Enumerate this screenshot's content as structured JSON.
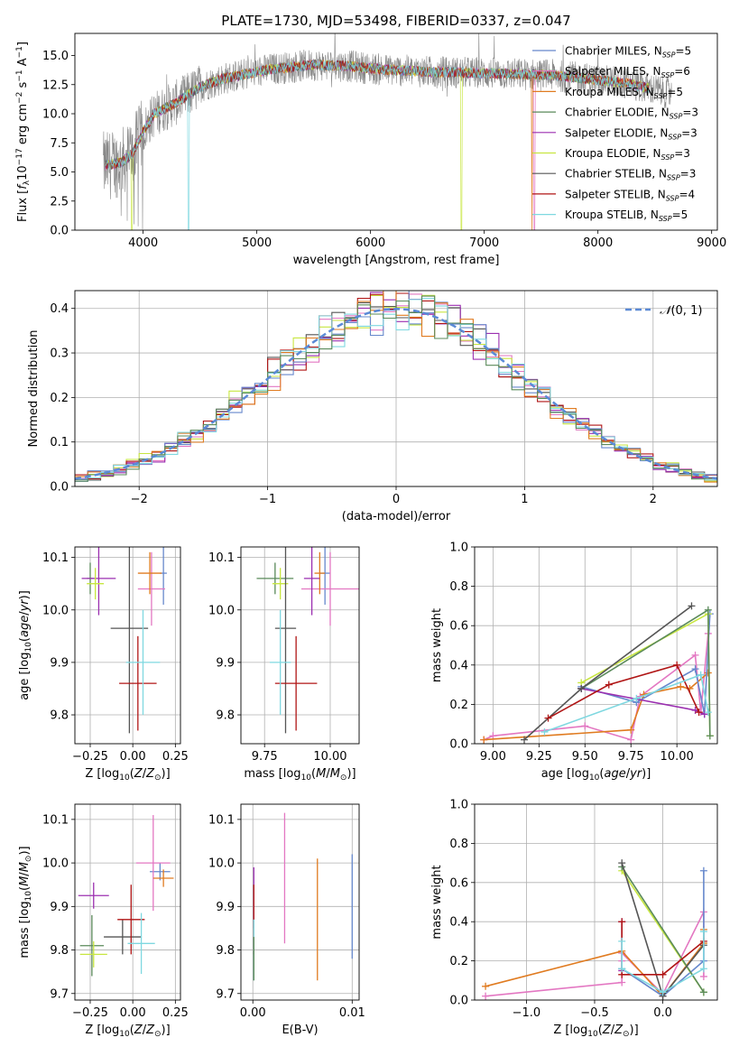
{
  "colors": {
    "chabrier_miles": "#6688cc",
    "salpeter_miles": "#e377c2",
    "kroupa_miles": "#e07b20",
    "chabrier_elodie": "#5a8a5a",
    "salpeter_elodie": "#9b2fb0",
    "kroupa_elodie": "#c8e640",
    "chabrier_stelib": "#555555",
    "salpeter_stelib": "#b01515",
    "kroupa_stelib": "#7fd8e0",
    "data_gray": "#888888",
    "gauss": "#5b8ad6",
    "grid": "#b0b0b0"
  },
  "chart_data": [
    {
      "id": "spectrum",
      "type": "line",
      "title": "PLATE=1730, MJD=53498, FIBERID=0337, z=0.047",
      "xlabel": "wavelength [Angstrom, rest frame]",
      "ylabel": "Flux [f_λ 10^-17 erg cm^-2 s^-1 A^-1]",
      "xlim": [
        3400,
        9050
      ],
      "ylim": [
        0,
        16.9
      ],
      "xticks": [
        4000,
        5000,
        6000,
        7000,
        8000,
        9000
      ],
      "yticks": [
        0.0,
        2.5,
        5.0,
        7.5,
        10.0,
        12.5,
        15.0
      ],
      "grid": false,
      "legend": "top-right",
      "data_range": [
        3650,
        8650
      ],
      "continuum": [
        [
          3650,
          5.5
        ],
        [
          3800,
          5.8
        ],
        [
          3900,
          6.5
        ],
        [
          4000,
          8.5
        ],
        [
          4100,
          10.0
        ],
        [
          4200,
          10.5
        ],
        [
          4300,
          11.0
        ],
        [
          4500,
          12.3
        ],
        [
          4700,
          13.0
        ],
        [
          4900,
          13.4
        ],
        [
          5100,
          13.8
        ],
        [
          5300,
          14.0
        ],
        [
          5500,
          14.2
        ],
        [
          5800,
          14.1
        ],
        [
          6100,
          13.8
        ],
        [
          6500,
          13.6
        ],
        [
          6900,
          13.5
        ],
        [
          7300,
          13.4
        ],
        [
          7600,
          13.3
        ],
        [
          7900,
          13.0
        ],
        [
          8200,
          12.7
        ],
        [
          8400,
          12.3
        ],
        [
          8650,
          11.7
        ]
      ],
      "series": [
        {
          "name": "Chabrier MILES, N_SSP=5",
          "color_key": "chabrier_miles"
        },
        {
          "name": "Salpeter MILES, N_SSP=6",
          "color_key": "salpeter_miles"
        },
        {
          "name": "Kroupa MILES, N_SSP=5",
          "color_key": "kroupa_miles"
        },
        {
          "name": "Chabrier ELODIE, N_SSP=3",
          "color_key": "chabrier_elodie"
        },
        {
          "name": "Salpeter ELODIE, N_SSP=3",
          "color_key": "salpeter_elodie"
        },
        {
          "name": "Kroupa ELODIE, N_SSP=3",
          "color_key": "kroupa_elodie"
        },
        {
          "name": "Chabrier STELIB, N_SSP=3",
          "color_key": "chabrier_stelib"
        },
        {
          "name": "Salpeter STELIB, N_SSP=4",
          "color_key": "salpeter_stelib"
        },
        {
          "name": "Kroupa STELIB, N_SSP=5",
          "color_key": "kroupa_stelib"
        }
      ]
    },
    {
      "id": "residuals",
      "type": "line",
      "xlabel": "(data-model)/error",
      "ylabel": "Normed distribution",
      "xlim": [
        -2.5,
        2.5
      ],
      "ylim": [
        0,
        0.44
      ],
      "xticks": [
        -2,
        -1,
        0,
        1,
        2
      ],
      "yticks": [
        0.0,
        0.1,
        0.2,
        0.3,
        0.4
      ],
      "grid": true,
      "legend": "top-right",
      "legend_label": "N(0,1)",
      "bins": 50
    },
    {
      "id": "age_vs_Z",
      "type": "scatter",
      "xlabel": "Z [log10(Z/Z⊙)]",
      "ylabel": "age [log10(age/yr)]",
      "xlim": [
        -0.34,
        0.28
      ],
      "ylim": [
        9.745,
        10.12
      ],
      "xticks": [
        -0.25,
        0.0,
        0.25
      ],
      "yticks": [
        9.8,
        9.9,
        10.0,
        10.1
      ],
      "grid": true,
      "points": [
        {
          "k": "chabrier_miles",
          "x": 0.18,
          "y": 10.07,
          "xe": 0.02,
          "ye": 0.06
        },
        {
          "k": "salpeter_miles",
          "x": 0.11,
          "y": 10.04,
          "xe": 0.08,
          "ye": 0.07
        },
        {
          "k": "kroupa_miles",
          "x": 0.1,
          "y": 10.07,
          "xe": 0.07,
          "ye": 0.04
        },
        {
          "k": "chabrier_elodie",
          "x": -0.25,
          "y": 10.06,
          "xe": 0.02,
          "ye": 0.03
        },
        {
          "k": "salpeter_elodie",
          "x": -0.2,
          "y": 10.06,
          "xe": 0.1,
          "ye": 0.07
        },
        {
          "k": "kroupa_elodie",
          "x": -0.22,
          "y": 10.05,
          "xe": 0.05,
          "ye": 0.03
        },
        {
          "k": "chabrier_stelib",
          "x": -0.02,
          "y": 9.965,
          "xe": 0.11,
          "ye": 0.2
        },
        {
          "k": "salpeter_stelib",
          "x": 0.03,
          "y": 9.86,
          "xe": 0.11,
          "ye": 0.09
        },
        {
          "k": "kroupa_stelib",
          "x": 0.06,
          "y": 9.9,
          "xe": 0.1,
          "ye": 0.1
        }
      ]
    },
    {
      "id": "age_vs_mass",
      "type": "scatter",
      "xlabel": "mass [log10(M/M⊙)]",
      "ylabel": "",
      "xlim": [
        9.66,
        10.11
      ],
      "ylim": [
        9.745,
        10.12
      ],
      "xticks": [
        9.75,
        10.0
      ],
      "yticks": [
        9.8,
        9.9,
        10.0,
        10.1
      ],
      "grid": true,
      "points": [
        {
          "k": "chabrier_miles",
          "x": 9.98,
          "y": 10.07,
          "xe": 0.02,
          "ye": 0.06
        },
        {
          "k": "salpeter_miles",
          "x": 10.0,
          "y": 10.04,
          "xe": 0.11,
          "ye": 0.07
        },
        {
          "k": "kroupa_miles",
          "x": 9.96,
          "y": 10.07,
          "xe": 0.02,
          "ye": 0.04
        },
        {
          "k": "chabrier_elodie",
          "x": 9.79,
          "y": 10.06,
          "xe": 0.07,
          "ye": 0.03
        },
        {
          "k": "salpeter_elodie",
          "x": 9.93,
          "y": 10.06,
          "xe": 0.03,
          "ye": 0.07
        },
        {
          "k": "kroupa_elodie",
          "x": 9.81,
          "y": 10.05,
          "xe": 0.03,
          "ye": 0.03
        },
        {
          "k": "chabrier_stelib",
          "x": 9.83,
          "y": 9.965,
          "xe": 0.04,
          "ye": 0.2
        },
        {
          "k": "salpeter_stelib",
          "x": 9.87,
          "y": 9.86,
          "xe": 0.08,
          "ye": 0.09
        },
        {
          "k": "kroupa_stelib",
          "x": 9.81,
          "y": 9.9,
          "xe": 0.04,
          "ye": 0.1
        }
      ]
    },
    {
      "id": "weight_vs_age",
      "type": "line",
      "xlabel": "age [log10(age/yr)]",
      "ylabel": "mass weight",
      "xlim": [
        8.9,
        10.22
      ],
      "ylim": [
        0,
        1.0
      ],
      "xticks": [
        9.0,
        9.25,
        9.5,
        9.75,
        10.0
      ],
      "yticks": [
        0.0,
        0.2,
        0.4,
        0.6,
        0.8,
        1.0
      ],
      "grid": true,
      "lines": [
        {
          "k": "salpeter_miles",
          "pts": [
            [
              8.95,
              0.02
            ],
            [
              9.0,
              0.04
            ],
            [
              9.5,
              0.09
            ],
            [
              9.75,
              0.02
            ],
            [
              9.8,
              0.24
            ],
            [
              10.1,
              0.45
            ],
            [
              10.13,
              0.16
            ],
            [
              10.17,
              0.56
            ]
          ]
        },
        {
          "k": "kroupa_miles",
          "pts": [
            [
              8.95,
              0.02
            ],
            [
              9.75,
              0.07
            ],
            [
              9.82,
              0.25
            ],
            [
              10.02,
              0.29
            ],
            [
              10.07,
              0.28
            ],
            [
              10.17,
              0.36
            ]
          ]
        },
        {
          "k": "chabrier_miles",
          "pts": [
            [
              9.48,
              0.29
            ],
            [
              9.78,
              0.21
            ],
            [
              10.1,
              0.38
            ],
            [
              10.15,
              0.15
            ],
            [
              10.18,
              0.66
            ]
          ]
        },
        {
          "k": "kroupa_elodie",
          "pts": [
            [
              9.48,
              0.31
            ],
            [
              10.17,
              0.66
            ],
            [
              10.18,
              0.04
            ]
          ]
        },
        {
          "k": "chabrier_elodie",
          "pts": [
            [
              9.48,
              0.28
            ],
            [
              10.17,
              0.68
            ],
            [
              10.18,
              0.04
            ]
          ]
        },
        {
          "k": "salpeter_elodie",
          "pts": [
            [
              9.48,
              0.28
            ],
            [
              10.1,
              0.17
            ],
            [
              10.15,
              0.15
            ]
          ]
        },
        {
          "k": "chabrier_stelib",
          "pts": [
            [
              9.17,
              0.02
            ],
            [
              9.48,
              0.28
            ],
            [
              10.08,
              0.7
            ]
          ]
        },
        {
          "k": "salpeter_stelib",
          "pts": [
            [
              9.3,
              0.13
            ],
            [
              9.63,
              0.3
            ],
            [
              10.0,
              0.4
            ],
            [
              10.12,
              0.16
            ]
          ]
        },
        {
          "k": "kroupa_stelib",
          "pts": [
            [
              9.28,
              0.06
            ],
            [
              9.78,
              0.23
            ],
            [
              10.13,
              0.35
            ],
            [
              10.17,
              0.16
            ]
          ]
        }
      ]
    },
    {
      "id": "mass_vs_Z",
      "type": "scatter",
      "xlabel": "Z [log10(Z/Z⊙)]",
      "ylabel": "mass [log10(M/M⊙)]",
      "xlim": [
        -0.34,
        0.28
      ],
      "ylim": [
        9.685,
        10.135
      ],
      "xticks": [
        -0.25,
        0.0,
        0.25
      ],
      "yticks": [
        9.7,
        9.8,
        9.9,
        10.0,
        10.1
      ],
      "grid": true,
      "points": [
        {
          "k": "chabrier_miles",
          "x": 0.16,
          "y": 9.98,
          "xe": 0.06,
          "ye": 0.02
        },
        {
          "k": "salpeter_miles",
          "x": 0.12,
          "y": 10.0,
          "xe": 0.1,
          "ye": 0.11
        },
        {
          "k": "kroupa_miles",
          "x": 0.18,
          "y": 9.965,
          "xe": 0.06,
          "ye": 0.02
        },
        {
          "k": "chabrier_elodie",
          "x": -0.24,
          "y": 9.81,
          "xe": 0.07,
          "ye": 0.07
        },
        {
          "k": "salpeter_elodie",
          "x": -0.23,
          "y": 9.925,
          "xe": 0.09,
          "ye": 0.03
        },
        {
          "k": "kroupa_elodie",
          "x": -0.23,
          "y": 9.79,
          "xe": 0.08,
          "ye": 0.03
        },
        {
          "k": "chabrier_stelib",
          "x": -0.06,
          "y": 9.83,
          "xe": 0.11,
          "ye": 0.04
        },
        {
          "k": "salpeter_stelib",
          "x": -0.01,
          "y": 9.87,
          "xe": 0.08,
          "ye": 0.08
        },
        {
          "k": "kroupa_stelib",
          "x": 0.05,
          "y": 9.815,
          "xe": 0.08,
          "ye": 0.07
        }
      ]
    },
    {
      "id": "mass_vs_ebv",
      "type": "scatter",
      "xlabel": "E(B-V)",
      "ylabel": "",
      "xlim": [
        -0.0012,
        0.0107
      ],
      "ylim": [
        9.685,
        10.135
      ],
      "xticks": [
        0.0,
        0.01
      ],
      "xticklabels": [
        "0.00",
        "0.01"
      ],
      "yticks": [
        9.7,
        9.8,
        9.9,
        10.0,
        10.1
      ],
      "grid": true,
      "points": [
        {
          "k": "chabrier_miles",
          "x": 0.01,
          "y": 9.9,
          "xe": 0,
          "ye": 0.12
        },
        {
          "k": "salpeter_miles",
          "x": 0.0032,
          "y": 9.965,
          "xe": 0,
          "ye": 0.15
        },
        {
          "k": "kroupa_miles",
          "x": 0.0065,
          "y": 9.87,
          "xe": 0,
          "ye": 0.14
        },
        {
          "k": "salpeter_elodie",
          "x": 0.0001,
          "y": 9.92,
          "xe": 0,
          "ye": 0.07
        },
        {
          "k": "salpeter_stelib",
          "x": 0.0001,
          "y": 9.87,
          "xe": 0,
          "ye": 0.08
        },
        {
          "k": "kroupa_stelib",
          "x": 0.0001,
          "y": 9.8,
          "xe": 0,
          "ye": 0.07
        },
        {
          "k": "chabrier_elodie",
          "x": 0.0001,
          "y": 9.78,
          "xe": 0,
          "ye": 0.05
        }
      ]
    },
    {
      "id": "weight_vs_Z",
      "type": "line",
      "xlabel": "Z [log10(Z/Z⊙)]",
      "ylabel": "mass weight",
      "xlim": [
        -1.38,
        0.4
      ],
      "ylim": [
        0,
        1.0
      ],
      "xticks": [
        -1.0,
        -0.5,
        0.0
      ],
      "yticks": [
        0.0,
        0.2,
        0.4,
        0.6,
        0.8,
        1.0
      ],
      "grid": true,
      "lines": [
        {
          "k": "salpeter_miles",
          "pts": [
            [
              -1.3,
              0.02
            ],
            [
              -0.3,
              0.09
            ],
            [
              -0.3,
              0.2
            ],
            [
              -0.3,
              0.24
            ],
            [
              0.0,
              0.03
            ],
            [
              0.3,
              0.45
            ],
            [
              0.3,
              0.12
            ]
          ]
        },
        {
          "k": "kroupa_miles",
          "pts": [
            [
              -1.3,
              0.07
            ],
            [
              -0.3,
              0.25
            ],
            [
              0.0,
              0.02
            ],
            [
              0.3,
              0.29
            ],
            [
              0.3,
              0.36
            ]
          ]
        },
        {
          "k": "chabrier_miles",
          "pts": [
            [
              -0.3,
              0.16
            ],
            [
              0.0,
              0.02
            ],
            [
              0.3,
              0.2
            ],
            [
              0.3,
              0.66
            ]
          ]
        },
        {
          "k": "kroupa_elodie",
          "pts": [
            [
              -0.3,
              0.66
            ],
            [
              0.3,
              0.04
            ]
          ]
        },
        {
          "k": "chabrier_elodie",
          "pts": [
            [
              -0.3,
              0.68
            ],
            [
              0.3,
              0.04
            ]
          ]
        },
        {
          "k": "salpeter_elodie",
          "pts": [
            [
              -0.3,
              0.4
            ],
            [
              -0.3,
              0.15
            ]
          ]
        },
        {
          "k": "chabrier_stelib",
          "pts": [
            [
              -0.3,
              0.7
            ],
            [
              0.0,
              0.02
            ],
            [
              0.3,
              0.28
            ]
          ]
        },
        {
          "k": "salpeter_stelib",
          "pts": [
            [
              -0.3,
              0.4
            ],
            [
              -0.3,
              0.13
            ],
            [
              0.0,
              0.13
            ],
            [
              0.3,
              0.3
            ]
          ]
        },
        {
          "k": "kroupa_stelib",
          "pts": [
            [
              -0.3,
              0.3
            ],
            [
              -0.3,
              0.16
            ],
            [
              0.0,
              0.04
            ],
            [
              0.3,
              0.16
            ],
            [
              0.3,
              0.35
            ]
          ]
        }
      ]
    }
  ]
}
